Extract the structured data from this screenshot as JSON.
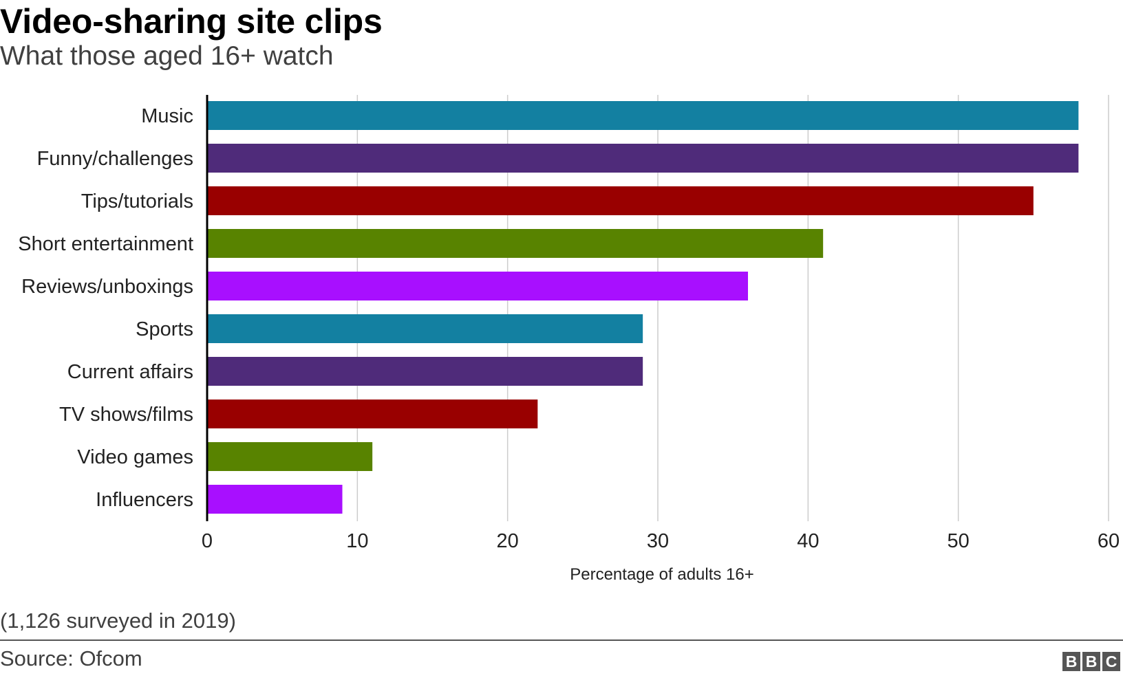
{
  "title": "Video-sharing site clips",
  "subtitle": "What those aged 16+ watch",
  "note": "(1,126 surveyed in 2019)",
  "source": "Source: Ofcom",
  "logo": {
    "letters": [
      "B",
      "B",
      "C"
    ]
  },
  "chart_data": {
    "type": "bar",
    "orientation": "horizontal",
    "categories": [
      "Music",
      "Funny/challenges",
      "Tips/tutorials",
      "Short entertainment",
      "Reviews/unboxings",
      "Sports",
      "Current affairs",
      "TV shows/films",
      "Video games",
      "Influencers"
    ],
    "values": [
      58,
      58,
      55,
      41,
      36,
      29,
      29,
      22,
      11,
      9
    ],
    "colors": [
      "#1380a1",
      "#4f2b7a",
      "#990000",
      "#588300",
      "#a80fff",
      "#1380a1",
      "#4f2b7a",
      "#990000",
      "#588300",
      "#a80fff"
    ],
    "xlabel": "Percentage of adults 16+",
    "xlim": [
      0,
      60
    ],
    "xticks": [
      0,
      10,
      20,
      30,
      40,
      50,
      60
    ],
    "grid": true,
    "gridline_color": "#cccccc",
    "axis_line_color": "#000000"
  }
}
